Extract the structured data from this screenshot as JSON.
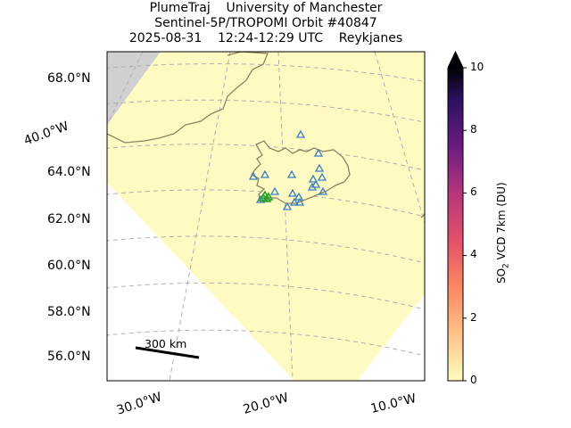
{
  "title": {
    "line1": "PlumeTraj    University of Manchester",
    "line2": "Sentinel-5P/TROPOMI Orbit #40847",
    "line3": "2025-08-31    12:24-12:29 UTC    Reykjanes"
  },
  "map": {
    "latitude_labels": [
      "68.0°N",
      "64.0°N",
      "62.0°N",
      "60.0°N",
      "58.0°N",
      "56.0°N"
    ],
    "longitude_labels": [
      "40.0°W",
      "30.0°W",
      "20.0°W",
      "10.0°W"
    ],
    "scale_bar_label": "300 km",
    "colors": {
      "swath": "#fff9c2",
      "land_gray": "#d0d0d0",
      "coastline": "#8a8660",
      "grid": "#b0b0b0",
      "volcano_marker": "#3a7fc0",
      "vent_marker": "#2ca02c"
    }
  },
  "colorbar": {
    "ticks": [
      "10",
      "8",
      "6",
      "4",
      "2",
      "0"
    ],
    "label_prefix": "SO",
    "label_sub": "2",
    "label_suffix": " VCD 7km (DU)",
    "range": [
      0,
      10
    ],
    "extend": "max",
    "colormap": "magma_r"
  }
}
